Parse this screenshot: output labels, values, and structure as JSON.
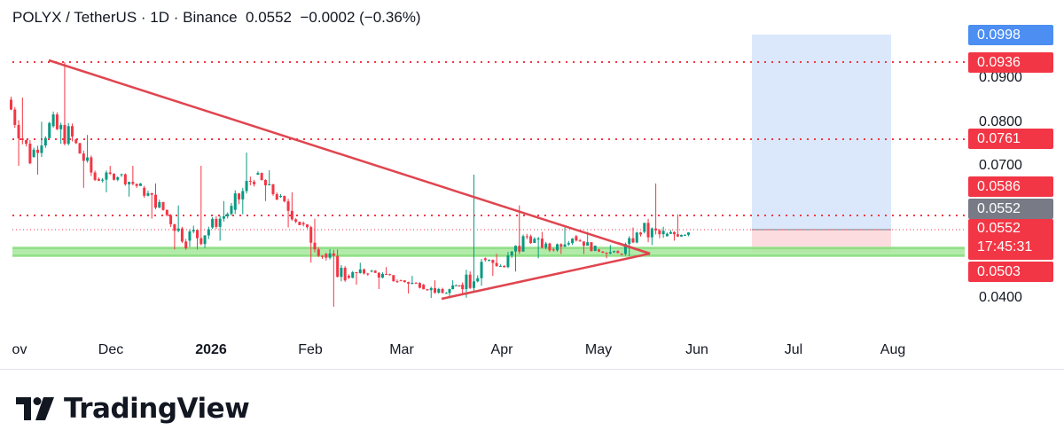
{
  "header": {
    "symbol": "POLYX / TetherUS",
    "sep1": " · ",
    "interval": "1D",
    "sep2": " · ",
    "exchange": "Binance",
    "last": "0.0552",
    "change": "−0.0002",
    "change_pct": "(−0.36%)"
  },
  "price_axis": {
    "ticks": [
      "0.0900",
      "0.0800",
      "0.0700",
      "0.0400"
    ],
    "badges": {
      "target_top": "0.0998",
      "resistance_top": "0.0936",
      "resistance_mid": "0.0761",
      "resistance_low": "0.0586",
      "entry": "0.0552",
      "last_price": "0.0552",
      "countdown": "17:45:31",
      "support": "0.0503"
    }
  },
  "time_axis": {
    "labels": [
      "ov",
      "Dec",
      "2026",
      "Feb",
      "Mar",
      "Apr",
      "May",
      "Jun",
      "Jul",
      "Aug"
    ]
  },
  "brand": {
    "name": "TradingView"
  },
  "colors": {
    "up": "#089981",
    "down": "#f23645",
    "level": "#f23645",
    "trend": "#e0454f",
    "support_zone": "#a5e89a",
    "target_zone": "#dbe8fb",
    "stop_zone": "#fcdcdf",
    "badge_blue": "#4c8ef2",
    "badge_gray": "#787b86"
  },
  "chart_data": {
    "type": "candlestick",
    "symbol": "POLYX / TetherUS",
    "interval": "1D",
    "exchange": "Binance",
    "last_price": 0.0552,
    "y_ticks": [
      0.04,
      0.07,
      0.08,
      0.09
    ],
    "ylim": [
      0.035,
      0.101
    ],
    "horizontal_levels": [
      0.0936,
      0.0761,
      0.0586
    ],
    "support_zone": [
      0.0498,
      0.0508
    ],
    "position": {
      "entry": 0.0552,
      "target": 0.0998,
      "stop": 0.0503,
      "start_date": "2026-06-18",
      "end_date": "2026-08-01"
    },
    "triangle": {
      "upper": [
        [
          "2025-11-14",
          0.0936
        ],
        [
          "2026-05-19",
          0.0503
        ]
      ],
      "lower": [
        [
          "2026-03-15",
          0.0399
        ],
        [
          "2026-05-19",
          0.0503
        ]
      ],
      "apex_line": [
        "2026-05-12",
        0.0523,
        "2026-05-19",
        0.0503
      ]
    },
    "x_labels": [
      "Nov",
      "Dec",
      "2026",
      "Feb",
      "Mar",
      "Apr",
      "May",
      "Jun",
      "Jul",
      "Aug"
    ],
    "candles_weekly_approx": [
      {
        "date": "2025-11-01",
        "o": 0.085,
        "h": 0.0855,
        "l": 0.07,
        "c": 0.072
      },
      {
        "date": "2025-11-08",
        "o": 0.072,
        "h": 0.08,
        "l": 0.068,
        "c": 0.079
      },
      {
        "date": "2025-11-14",
        "o": 0.079,
        "h": 0.0936,
        "l": 0.075,
        "c": 0.076
      },
      {
        "date": "2025-11-21",
        "o": 0.076,
        "h": 0.077,
        "l": 0.065,
        "c": 0.067
      },
      {
        "date": "2025-11-28",
        "o": 0.067,
        "h": 0.07,
        "l": 0.064,
        "c": 0.068
      },
      {
        "date": "2025-12-05",
        "o": 0.068,
        "h": 0.07,
        "l": 0.063,
        "c": 0.065
      },
      {
        "date": "2025-12-12",
        "o": 0.065,
        "h": 0.066,
        "l": 0.058,
        "c": 0.06
      },
      {
        "date": "2025-12-19",
        "o": 0.06,
        "h": 0.061,
        "l": 0.051,
        "c": 0.053
      },
      {
        "date": "2025-12-26",
        "o": 0.053,
        "h": 0.07,
        "l": 0.051,
        "c": 0.056
      },
      {
        "date": "2026-01-02",
        "o": 0.056,
        "h": 0.062,
        "l": 0.053,
        "c": 0.06
      },
      {
        "date": "2026-01-09",
        "o": 0.06,
        "h": 0.073,
        "l": 0.059,
        "c": 0.068
      },
      {
        "date": "2026-01-16",
        "o": 0.068,
        "h": 0.069,
        "l": 0.062,
        "c": 0.063
      },
      {
        "date": "2026-01-23",
        "o": 0.063,
        "h": 0.064,
        "l": 0.056,
        "c": 0.057
      },
      {
        "date": "2026-01-30",
        "o": 0.057,
        "h": 0.058,
        "l": 0.048,
        "c": 0.05
      },
      {
        "date": "2026-02-06",
        "o": 0.05,
        "h": 0.051,
        "l": 0.038,
        "c": 0.045
      },
      {
        "date": "2026-02-13",
        "o": 0.045,
        "h": 0.048,
        "l": 0.043,
        "c": 0.046
      },
      {
        "date": "2026-02-20",
        "o": 0.046,
        "h": 0.047,
        "l": 0.042,
        "c": 0.044
      },
      {
        "date": "2026-03-01",
        "o": 0.044,
        "h": 0.045,
        "l": 0.041,
        "c": 0.043
      },
      {
        "date": "2026-03-08",
        "o": 0.043,
        "h": 0.044,
        "l": 0.04,
        "c": 0.041
      },
      {
        "date": "2026-03-15",
        "o": 0.041,
        "h": 0.044,
        "l": 0.0399,
        "c": 0.043
      },
      {
        "date": "2026-03-20",
        "o": 0.043,
        "h": 0.068,
        "l": 0.042,
        "c": 0.049
      },
      {
        "date": "2026-03-27",
        "o": 0.049,
        "h": 0.05,
        "l": 0.045,
        "c": 0.047
      },
      {
        "date": "2026-04-03",
        "o": 0.047,
        "h": 0.061,
        "l": 0.046,
        "c": 0.054
      },
      {
        "date": "2026-04-10",
        "o": 0.054,
        "h": 0.055,
        "l": 0.049,
        "c": 0.051
      },
      {
        "date": "2026-04-17",
        "o": 0.051,
        "h": 0.056,
        "l": 0.05,
        "c": 0.054
      },
      {
        "date": "2026-04-24",
        "o": 0.054,
        "h": 0.055,
        "l": 0.05,
        "c": 0.051
      },
      {
        "date": "2026-05-01",
        "o": 0.051,
        "h": 0.052,
        "l": 0.049,
        "c": 0.05
      },
      {
        "date": "2026-05-08",
        "o": 0.05,
        "h": 0.056,
        "l": 0.0495,
        "c": 0.055
      },
      {
        "date": "2026-05-15",
        "o": 0.055,
        "h": 0.066,
        "l": 0.052,
        "c": 0.054
      },
      {
        "date": "2026-05-22",
        "o": 0.054,
        "h": 0.059,
        "l": 0.053,
        "c": 0.0552
      }
    ]
  }
}
